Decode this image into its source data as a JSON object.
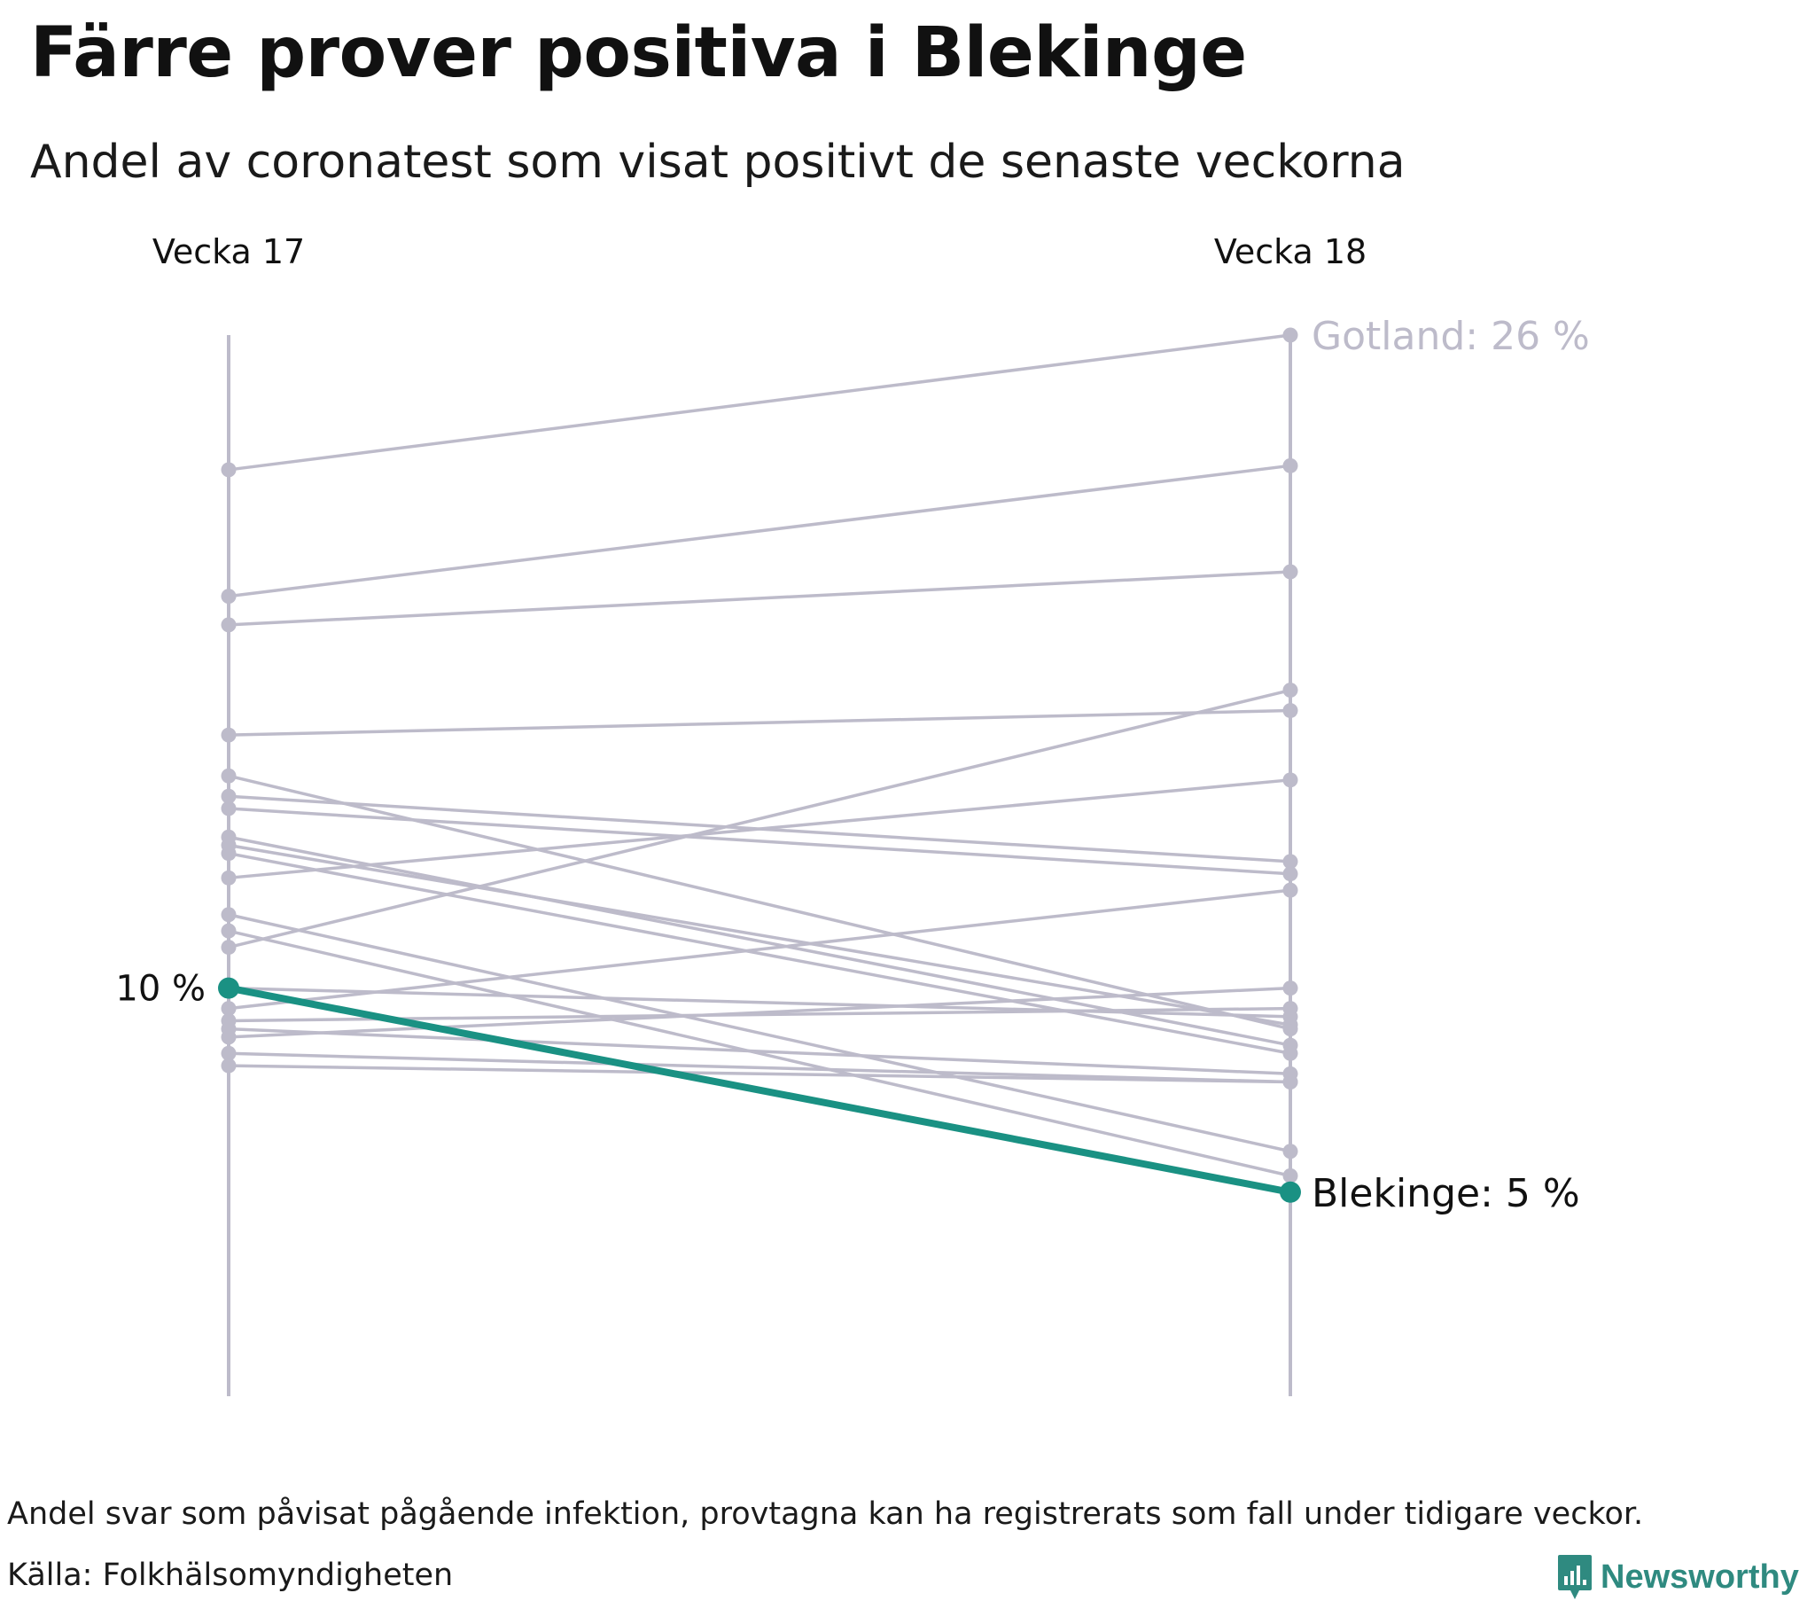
{
  "header": {
    "title": "Färre prover positiva i Blekinge",
    "subtitle": "Andel av coronatest som visat positivt de senaste veckorna"
  },
  "chart_data": {
    "type": "slope",
    "title": "Färre prover positiva i Blekinge",
    "subtitle": "Andel av coronatest som visat positivt de senaste veckorna",
    "x": [
      "Vecka 17",
      "Vecka 18"
    ],
    "y_unit": "%",
    "ylim": [
      0,
      26
    ],
    "axis_label_left": "10 %",
    "grid": false,
    "colors": {
      "highlight": "#1a9183",
      "background_series": "#bdbbca",
      "gotland_label": "#bdbbca",
      "text": "#111111"
    },
    "highlight": {
      "name": "Blekinge",
      "values": [
        10.0,
        5.0
      ],
      "label": "Blekinge: 5 %"
    },
    "annotated": {
      "name": "Gotland",
      "values": [
        22.7,
        26.0
      ],
      "label": "Gotland: 26 %"
    },
    "series": [
      {
        "values": [
          22.7,
          26.0
        ]
      },
      {
        "values": [
          19.6,
          22.8
        ]
      },
      {
        "values": [
          18.9,
          20.2
        ]
      },
      {
        "values": [
          16.2,
          16.8
        ]
      },
      {
        "values": [
          15.2,
          9.0
        ]
      },
      {
        "values": [
          14.7,
          13.1
        ]
      },
      {
        "values": [
          14.4,
          12.8
        ]
      },
      {
        "values": [
          13.7,
          8.6
        ]
      },
      {
        "values": [
          13.5,
          9.1
        ]
      },
      {
        "values": [
          13.3,
          8.4
        ]
      },
      {
        "values": [
          12.7,
          15.1
        ]
      },
      {
        "values": [
          11.8,
          6.0
        ]
      },
      {
        "values": [
          11.4,
          5.4
        ]
      },
      {
        "values": [
          11.0,
          17.3
        ]
      },
      {
        "values": [
          10.0,
          9.3
        ]
      },
      {
        "values": [
          9.5,
          12.4
        ]
      },
      {
        "values": [
          9.0,
          7.9
        ]
      },
      {
        "values": [
          8.8,
          10.0
        ]
      },
      {
        "values": [
          8.4,
          7.7
        ]
      },
      {
        "values": [
          8.1,
          7.7
        ]
      },
      {
        "values": [
          9.2,
          9.5
        ]
      }
    ]
  },
  "footer": {
    "note": "Andel svar som påvisat pågående infektion, provtagna kan ha registrerats som fall under tidigare veckor.",
    "source": "Källa: Folkhälsomyndigheten",
    "brand": "Newsworthy"
  }
}
